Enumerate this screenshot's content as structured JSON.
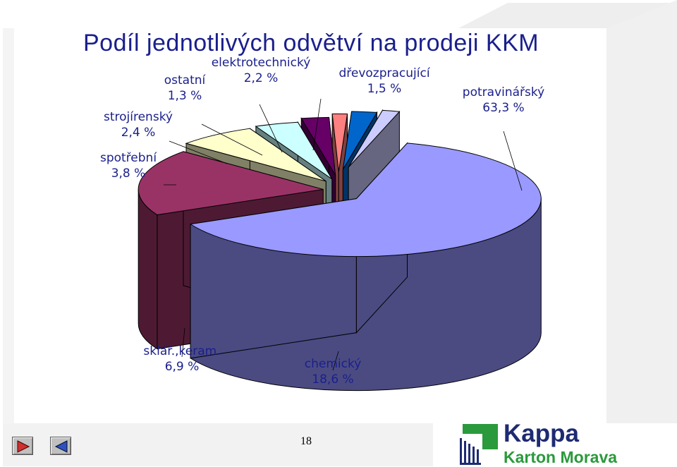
{
  "slide": {
    "title": "Podíl jednotlivých odvětví na prodeji KKM",
    "page_number": "18"
  },
  "colors": {
    "title": "#1a1f8c",
    "label_text": "#1a1f8c",
    "background_accent": "#e9e9e9"
  },
  "nav": {
    "prev_icon": "play-right-icon",
    "next_icon": "play-left-icon"
  },
  "logo": {
    "name": "Kappa",
    "subtitle": "Karton Morava",
    "name_color": "#1e2b72",
    "subtitle_color": "#2a9a3c"
  },
  "chart_data": {
    "type": "pie",
    "style": "3d-exploded",
    "title": "Podíl jednotlivých odvětví na prodeji KKM",
    "slices": [
      {
        "label": "potravinářský",
        "value": 63.3,
        "value_label": "63,3 %",
        "color": "#9999ff",
        "side_color": "#4b4b82"
      },
      {
        "label": "chemický",
        "value": 18.6,
        "value_label": "18,6 %",
        "color": "#993366",
        "side_color": "#4e1a33"
      },
      {
        "label": "sklář.,keram.",
        "value": 6.9,
        "value_label": "6,9 %",
        "color": "#ffffcc",
        "side_color": "#808066"
      },
      {
        "label": "spotřební",
        "value": 3.8,
        "value_label": "3,8 %",
        "color": "#ccffff",
        "side_color": "#668080"
      },
      {
        "label": "strojírenský",
        "value": 2.4,
        "value_label": "2,4 %",
        "color": "#660066",
        "side_color": "#330033"
      },
      {
        "label": "ostatní",
        "value": 1.3,
        "value_label": "1,3 %",
        "color": "#ff8080",
        "side_color": "#804040"
      },
      {
        "label": "elektrotechnický",
        "value": 2.2,
        "value_label": "2,2 %",
        "color": "#0066cc",
        "side_color": "#003366"
      },
      {
        "label": "dřevozpracující",
        "value": 1.5,
        "value_label": "1,5 %",
        "color": "#ccccff",
        "side_color": "#666680"
      }
    ]
  }
}
